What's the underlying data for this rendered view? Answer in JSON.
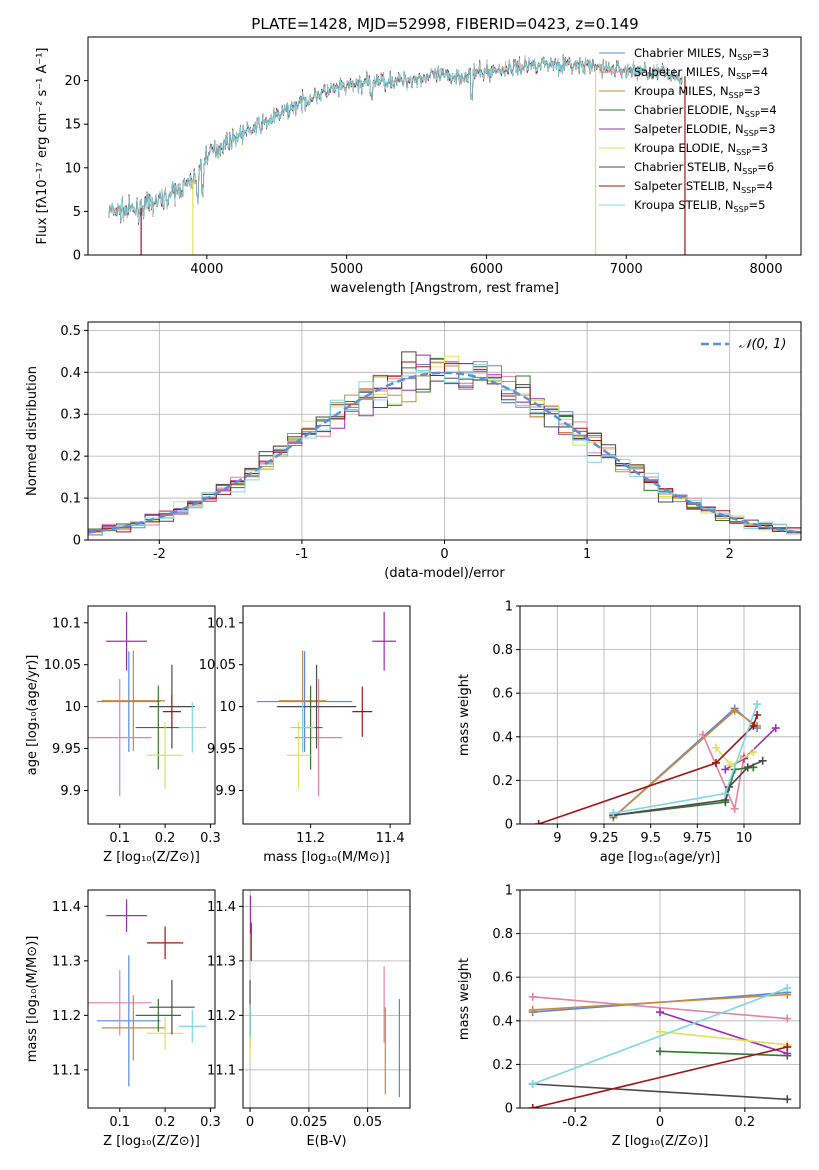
{
  "figure": {
    "title": "PLATE=1428, MJD=52998, FIBERID=0423, z=0.149"
  },
  "colors": {
    "Chabrier MILES": "#5b87d9",
    "Salpeter MILES": "#e8829f",
    "Kroupa MILES": "#c98a3a",
    "Chabrier ELODIE": "#2f7a2f",
    "Salpeter ELODIE": "#9b2fb5",
    "Kroupa ELODIE": "#dde35a",
    "Chabrier STELIB": "#4a4a4a",
    "Salpeter STELIB": "#a31515",
    "Kroupa STELIB": "#7fd8e3",
    "normal_curve": "#5b8fd6"
  },
  "chart_data": [
    {
      "id": "spectrum",
      "type": "line",
      "title": "PLATE=1428, MJD=52998, FIBERID=0423, z=0.149",
      "xlabel": "wavelength [Angstrom, rest frame]",
      "ylabel": "Flux [fλ10⁻¹⁷ erg cm⁻² s⁻¹ A⁻¹]",
      "xlim": [
        3150,
        8250
      ],
      "ylim": [
        0,
        25
      ],
      "xticks": [
        4000,
        5000,
        6000,
        7000,
        8000
      ],
      "yticks": [
        0,
        5,
        10,
        15,
        20
      ],
      "grid": false,
      "legend_position": "top-right",
      "legend": [
        "Chabrier MILES, N_SSP=3",
        "Salpeter MILES, N_SSP=4",
        "Kroupa MILES, N_SSP=3",
        "Chabrier ELODIE, N_SSP=4",
        "Salpeter ELODIE, N_SSP=3",
        "Kroupa ELODIE, N_SSP=3",
        "Chabrier STELIB, N_SSP=6",
        "Salpeter STELIB, N_SSP=4",
        "Kroupa STELIB, N_SSP=5"
      ],
      "continuum": {
        "x": [
          3300,
          3500,
          3700,
          3900,
          4000,
          4200,
          4400,
          4600,
          4800,
          5000,
          5200,
          5400,
          5600,
          5800,
          6000,
          6200,
          6400,
          6600,
          6800,
          7000,
          7200,
          7400
        ],
        "y": [
          5,
          5.2,
          6.5,
          8.5,
          11.5,
          13.5,
          15,
          16.8,
          18.5,
          19.3,
          20,
          20,
          20.5,
          20.5,
          21,
          21.5,
          22,
          21.8,
          21.5,
          21.2,
          21,
          20.5
        ]
      },
      "drops_to_zero_at": [
        3530,
        3900,
        6780,
        7420
      ]
    },
    {
      "id": "residuals",
      "type": "histogram",
      "xlabel": "(data-model)/error",
      "ylabel": "Normed distribution",
      "xlim": [
        -2.5,
        2.5
      ],
      "ylim": [
        0,
        0.52
      ],
      "xticks": [
        -2,
        -1,
        0,
        1,
        2
      ],
      "yticks": [
        0.0,
        0.1,
        0.2,
        0.3,
        0.4,
        0.5
      ],
      "grid": true,
      "legend_position": "top-right",
      "legend": [
        "𝒩(0, 1)"
      ],
      "bins": 50
    },
    {
      "id": "age-vs-Z",
      "type": "errorbar",
      "xlabel": "Z [log₁₀(Z/Z⊙)]",
      "ylabel": "age  [log₁₀(age/yr)]",
      "xlim": [
        0.03,
        0.31
      ],
      "ylim": [
        9.86,
        10.12
      ],
      "xticks": [
        0.1,
        0.2,
        0.3
      ],
      "yticks": [
        9.9,
        9.95,
        10.0,
        10.05,
        10.1
      ],
      "grid": false,
      "points": [
        {
          "model": "Chabrier MILES",
          "x": 0.12,
          "y": 10.006,
          "xerr": 0.07,
          "yerr": 0.06
        },
        {
          "model": "Salpeter MILES",
          "x": 0.1,
          "y": 9.963,
          "xerr": 0.07,
          "yerr": 0.07
        },
        {
          "model": "Kroupa MILES",
          "x": 0.13,
          "y": 10.007,
          "xerr": 0.07,
          "yerr": 0.06
        },
        {
          "model": "Chabrier ELODIE",
          "x": 0.185,
          "y": 9.975,
          "xerr": 0.05,
          "yerr": 0.05
        },
        {
          "model": "Salpeter ELODIE",
          "x": 0.115,
          "y": 10.078,
          "xerr": 0.045,
          "yerr": 0.035
        },
        {
          "model": "Kroupa ELODIE",
          "x": 0.2,
          "y": 9.942,
          "xerr": 0.04,
          "yerr": 0.04
        },
        {
          "model": "Chabrier STELIB",
          "x": 0.215,
          "y": 10.0,
          "xerr": 0.05,
          "yerr": 0.05
        },
        {
          "model": "Salpeter STELIB",
          "x": 0.215,
          "y": 9.994,
          "xerr": 0.02,
          "yerr": 0.02
        },
        {
          "model": "Kroupa STELIB",
          "x": 0.26,
          "y": 9.975,
          "xerr": 0.03,
          "yerr": 0.03
        }
      ]
    },
    {
      "id": "age-vs-mass",
      "type": "errorbar",
      "xlabel": "mass [log₁₀(M/M⊙)]",
      "xlim": [
        11.03,
        11.45
      ],
      "ylim": [
        9.86,
        10.12
      ],
      "xticks": [
        11.2,
        11.4
      ],
      "yticks": [
        9.9,
        9.95,
        10.0,
        10.05,
        10.1
      ],
      "grid": false,
      "points": [
        {
          "model": "Chabrier MILES",
          "x": 11.185,
          "y": 10.006,
          "xerr": 0.12,
          "yerr": 0.06
        },
        {
          "model": "Salpeter MILES",
          "x": 11.22,
          "y": 9.963,
          "xerr": 0.06,
          "yerr": 0.07
        },
        {
          "model": "Kroupa MILES",
          "x": 11.18,
          "y": 10.007,
          "xerr": 0.06,
          "yerr": 0.06
        },
        {
          "model": "Chabrier ELODIE",
          "x": 11.2,
          "y": 9.975,
          "xerr": 0.03,
          "yerr": 0.05
        },
        {
          "model": "Salpeter ELODIE",
          "x": 11.385,
          "y": 10.078,
          "xerr": 0.03,
          "yerr": 0.035
        },
        {
          "model": "Kroupa ELODIE",
          "x": 11.17,
          "y": 9.942,
          "xerr": 0.03,
          "yerr": 0.04
        },
        {
          "model": "Chabrier STELIB",
          "x": 11.215,
          "y": 10.0,
          "xerr": 0.1,
          "yerr": 0.05
        },
        {
          "model": "Salpeter STELIB",
          "x": 11.33,
          "y": 9.994,
          "xerr": 0.025,
          "yerr": 0.03
        },
        {
          "model": "Kroupa STELIB",
          "x": 11.18,
          "y": 9.975,
          "xerr": 0.03,
          "yerr": 0.03
        }
      ]
    },
    {
      "id": "weight-vs-age",
      "type": "line",
      "xlabel": "age  [log₁₀(age/yr)]",
      "ylabel": "mass weight",
      "xlim": [
        8.8,
        10.3
      ],
      "ylim": [
        0,
        1
      ],
      "xticks": [
        9.0,
        9.25,
        9.5,
        9.75,
        10.0
      ],
      "yticks": [
        0.0,
        0.2,
        0.4,
        0.6,
        0.8,
        1.0
      ],
      "grid": true,
      "series": [
        {
          "model": "Chabrier MILES",
          "x": [
            9.3,
            9.95,
            10.07
          ],
          "y": [
            0.03,
            0.53,
            0.44
          ]
        },
        {
          "model": "Salpeter MILES",
          "x": [
            9.78,
            9.95,
            10.0
          ],
          "y": [
            0.41,
            0.07,
            0.31
          ]
        },
        {
          "model": "Kroupa MILES",
          "x": [
            9.3,
            9.95,
            10.07
          ],
          "y": [
            0.03,
            0.52,
            0.45
          ]
        },
        {
          "model": "Chabrier ELODIE",
          "x": [
            9.3,
            9.9,
            9.95,
            10.05
          ],
          "y": [
            0.04,
            0.1,
            0.25,
            0.26
          ]
        },
        {
          "model": "Salpeter ELODIE",
          "x": [
            9.9,
            10.0,
            10.17
          ],
          "y": [
            0.25,
            0.3,
            0.44
          ]
        },
        {
          "model": "Kroupa ELODIE",
          "x": [
            9.85,
            9.93,
            10.05
          ],
          "y": [
            0.35,
            0.27,
            0.33
          ]
        },
        {
          "model": "Chabrier STELIB",
          "x": [
            9.3,
            9.9,
            9.92,
            10.02,
            10.1
          ],
          "y": [
            0.04,
            0.11,
            0.17,
            0.26,
            0.29
          ]
        },
        {
          "model": "Salpeter STELIB",
          "x": [
            8.9,
            9.85,
            10.05,
            10.07
          ],
          "y": [
            0.0,
            0.28,
            0.45,
            0.5
          ]
        },
        {
          "model": "Kroupa STELIB",
          "x": [
            9.3,
            9.9,
            10.07
          ],
          "y": [
            0.05,
            0.14,
            0.55
          ]
        }
      ]
    },
    {
      "id": "mass-vs-Z",
      "type": "errorbar",
      "xlabel": "Z [log₁₀(Z/Z⊙)]",
      "ylabel": "mass [log₁₀(M/M⊙)]",
      "xlim": [
        0.03,
        0.31
      ],
      "ylim": [
        11.03,
        11.43
      ],
      "xticks": [
        0.1,
        0.2,
        0.3
      ],
      "yticks": [
        11.1,
        11.2,
        11.3,
        11.4
      ],
      "grid": false,
      "points": [
        {
          "model": "Chabrier MILES",
          "x": 0.12,
          "y": 11.19,
          "xerr": 0.07,
          "yerr": 0.12
        },
        {
          "model": "Salpeter MILES",
          "x": 0.1,
          "y": 11.223,
          "xerr": 0.07,
          "yerr": 0.06
        },
        {
          "model": "Kroupa MILES",
          "x": 0.13,
          "y": 11.177,
          "xerr": 0.07,
          "yerr": 0.06
        },
        {
          "model": "Chabrier ELODIE",
          "x": 0.185,
          "y": 11.2,
          "xerr": 0.05,
          "yerr": 0.03
        },
        {
          "model": "Salpeter ELODIE",
          "x": 0.115,
          "y": 11.383,
          "xerr": 0.045,
          "yerr": 0.03
        },
        {
          "model": "Kroupa ELODIE",
          "x": 0.2,
          "y": 11.167,
          "xerr": 0.04,
          "yerr": 0.03
        },
        {
          "model": "Chabrier STELIB",
          "x": 0.215,
          "y": 11.215,
          "xerr": 0.05,
          "yerr": 0.05
        },
        {
          "model": "Salpeter STELIB",
          "x": 0.2,
          "y": 11.333,
          "xerr": 0.04,
          "yerr": 0.03
        },
        {
          "model": "Kroupa STELIB",
          "x": 0.26,
          "y": 11.18,
          "xerr": 0.03,
          "yerr": 0.03
        }
      ]
    },
    {
      "id": "mass-vs-EBV",
      "type": "errorbar",
      "xlabel": "E(B-V)",
      "xlim": [
        -0.003,
        0.068
      ],
      "ylim": [
        11.03,
        11.43
      ],
      "xticks": [
        0.0,
        0.025,
        0.05
      ],
      "yticks": [
        11.1,
        11.2,
        11.3,
        11.4
      ],
      "grid": true,
      "points": [
        {
          "model": "Chabrier MILES",
          "x": 0.0635,
          "y": 11.14,
          "xerr": 0,
          "yerr": 0.09
        },
        {
          "model": "Salpeter MILES",
          "x": 0.057,
          "y": 11.22,
          "xerr": 0,
          "yerr": 0.07
        },
        {
          "model": "Kroupa MILES",
          "x": 0.0575,
          "y": 11.135,
          "xerr": 0,
          "yerr": 0.08
        },
        {
          "model": "Chabrier ELODIE",
          "x": 0.0,
          "y": 11.18,
          "xerr": 0,
          "yerr": 0.04
        },
        {
          "model": "Salpeter ELODIE",
          "x": 0.0002,
          "y": 11.385,
          "xerr": 0,
          "yerr": 0.035
        },
        {
          "model": "Kroupa ELODIE",
          "x": 0.0,
          "y": 11.16,
          "xerr": 0,
          "yerr": 0.04
        },
        {
          "model": "Chabrier STELIB",
          "x": 0.0,
          "y": 11.215,
          "xerr": 0,
          "yerr": 0.05
        },
        {
          "model": "Salpeter STELIB",
          "x": 0.0005,
          "y": 11.335,
          "xerr": 0,
          "yerr": 0.035
        },
        {
          "model": "Kroupa STELIB",
          "x": 0.0,
          "y": 11.19,
          "xerr": 0,
          "yerr": 0.03
        }
      ]
    },
    {
      "id": "weight-vs-Z",
      "type": "line",
      "xlabel": "Z [log₁₀(Z/Z⊙)]",
      "ylabel": "mass weight",
      "xlim": [
        -0.33,
        0.33
      ],
      "ylim": [
        0,
        1
      ],
      "xticks": [
        -0.2,
        0.0,
        0.2
      ],
      "yticks": [
        0.0,
        0.2,
        0.4,
        0.6,
        0.8,
        1.0
      ],
      "grid": true,
      "series": [
        {
          "model": "Chabrier MILES",
          "x": [
            -0.3,
            0.3
          ],
          "y": [
            0.44,
            0.53
          ]
        },
        {
          "model": "Salpeter MILES",
          "x": [
            -0.3,
            0.3
          ],
          "y": [
            0.51,
            0.41
          ]
        },
        {
          "model": "Kroupa MILES",
          "x": [
            -0.3,
            0.3
          ],
          "y": [
            0.45,
            0.52
          ]
        },
        {
          "model": "Chabrier ELODIE",
          "x": [
            0.0,
            0.3
          ],
          "y": [
            0.26,
            0.24
          ]
        },
        {
          "model": "Salpeter ELODIE",
          "x": [
            0.0,
            0.3
          ],
          "y": [
            0.44,
            0.25
          ]
        },
        {
          "model": "Kroupa ELODIE",
          "x": [
            0.0,
            0.3
          ],
          "y": [
            0.35,
            0.29
          ]
        },
        {
          "model": "Chabrier STELIB",
          "x": [
            -0.3,
            0.3
          ],
          "y": [
            0.11,
            0.04
          ]
        },
        {
          "model": "Salpeter STELIB",
          "x": [
            -0.3,
            0.3
          ],
          "y": [
            0.0,
            0.28
          ]
        },
        {
          "model": "Kroupa STELIB",
          "x": [
            -0.3,
            0.3
          ],
          "y": [
            0.11,
            0.55
          ]
        }
      ]
    }
  ]
}
